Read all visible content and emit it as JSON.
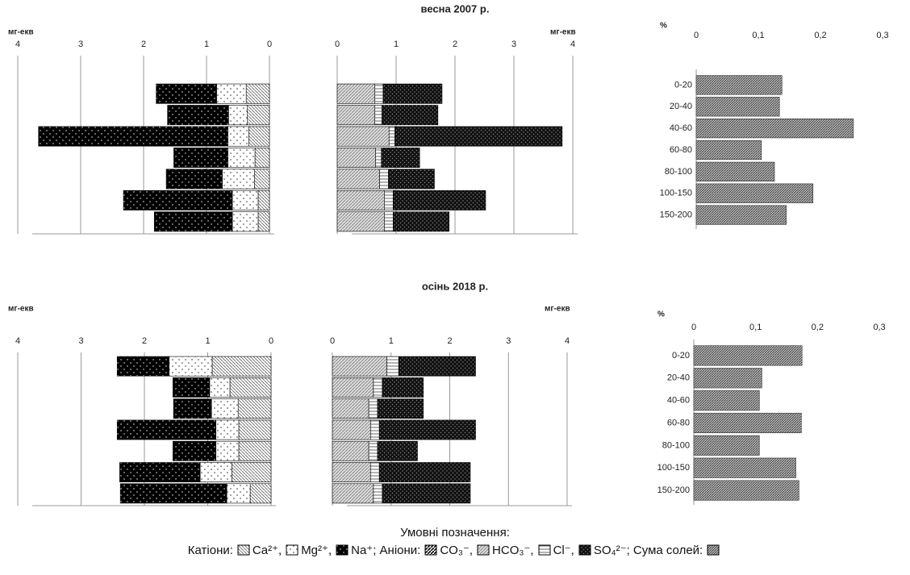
{
  "sections": [
    "весна 2007 р.",
    "осінь 2018 р."
  ],
  "legend": {
    "title": "Умовні позначення:",
    "groups": [
      {
        "label": "Катіони:"
      },
      {
        "label": "Аніони:"
      },
      {
        "label": "Сума солей:"
      }
    ]
  },
  "chart_data": [
    {
      "type": "stacked_bar",
      "unit": "мг-екв",
      "unit_position": "left",
      "xlim": [
        4,
        0
      ],
      "xticks": [
        4,
        3,
        2,
        1,
        0
      ],
      "grid": true,
      "series": [
        {
          "name": "Ca²⁺",
          "pattern": "p-ca",
          "values": [
            0.37,
            0.35,
            0.33,
            0.23,
            0.24,
            0.18,
            0.18
          ]
        },
        {
          "name": "Mg²⁺",
          "pattern": "p-mg",
          "values": [
            0.47,
            0.3,
            0.33,
            0.43,
            0.51,
            0.41,
            0.41
          ]
        },
        {
          "name": "Na⁺",
          "pattern": "p-na",
          "values": [
            0.96,
            0.97,
            3.01,
            0.86,
            0.89,
            1.73,
            1.24
          ]
        }
      ]
    },
    {
      "type": "stacked_bar",
      "unit": "мг-екв",
      "unit_position": "right",
      "xlim": [
        0,
        4
      ],
      "xticks": [
        0,
        1,
        2,
        3,
        4
      ],
      "grid": true,
      "series": [
        {
          "name": "CO₃⁻",
          "pattern": "p-co3",
          "values": [
            0,
            0,
            0,
            0,
            0,
            0,
            0
          ]
        },
        {
          "name": "HCO₃⁻",
          "pattern": "p-hco3",
          "values": [
            0.64,
            0.64,
            0.88,
            0.65,
            0.72,
            0.8,
            0.8
          ]
        },
        {
          "name": "Cl⁻",
          "pattern": "p-cl",
          "values": [
            0.14,
            0.12,
            0.1,
            0.1,
            0.15,
            0.15,
            0.15
          ]
        },
        {
          "name": "SO₄²⁻",
          "pattern": "p-so4",
          "values": [
            1.0,
            0.95,
            2.84,
            0.65,
            0.78,
            1.57,
            0.95
          ]
        }
      ]
    },
    {
      "type": "bar",
      "unit": "%",
      "unit_position": "left",
      "xlim": [
        0,
        0.3
      ],
      "xticks": [
        0,
        {
          "value": 0.1,
          "label": "0,1"
        },
        {
          "value": 0.2,
          "label": "0,2"
        },
        {
          "value": 0.3,
          "label": "0,3"
        }
      ],
      "grid": false,
      "pattern": "p-sum",
      "categories": [
        "0-20",
        "20-40",
        "40-60",
        "60-80",
        "80-100",
        "100-150",
        "150-200"
      ],
      "values": [
        0.138,
        0.134,
        0.253,
        0.105,
        0.126,
        0.188,
        0.145
      ]
    },
    {
      "type": "stacked_bar",
      "unit": "мг-екв",
      "unit_position": "left",
      "xlim": [
        4,
        0
      ],
      "xticks": [
        4,
        3,
        2,
        1,
        0
      ],
      "grid": true,
      "series": [
        {
          "name": "Ca²⁺",
          "pattern": "p-ca",
          "values": [
            0.93,
            0.65,
            0.52,
            0.51,
            0.51,
            0.62,
            0.33
          ]
        },
        {
          "name": "Mg²⁺",
          "pattern": "p-mg",
          "values": [
            0.68,
            0.32,
            0.42,
            0.36,
            0.36,
            0.5,
            0.37
          ]
        },
        {
          "name": "Na⁺",
          "pattern": "p-na",
          "values": [
            0.82,
            0.58,
            0.6,
            1.56,
            0.68,
            1.27,
            1.68
          ]
        }
      ]
    },
    {
      "type": "stacked_bar",
      "unit": "мг-екв",
      "unit_position": "right",
      "xlim": [
        0,
        4
      ],
      "xticks": [
        0,
        1,
        2,
        3,
        4
      ],
      "grid": true,
      "series": [
        {
          "name": "CO₃⁻",
          "pattern": "p-co3",
          "values": [
            0,
            0,
            0,
            0,
            0,
            0,
            0
          ]
        },
        {
          "name": "HCO₃⁻",
          "pattern": "p-hco3",
          "values": [
            0.93,
            0.7,
            0.62,
            0.65,
            0.62,
            0.65,
            0.7
          ]
        },
        {
          "name": "Cl⁻",
          "pattern": "p-cl",
          "values": [
            0.2,
            0.15,
            0.15,
            0.15,
            0.15,
            0.15,
            0.15
          ]
        },
        {
          "name": "SO₄²⁻",
          "pattern": "p-so4",
          "values": [
            1.31,
            0.7,
            0.78,
            1.64,
            0.68,
            1.55,
            1.5
          ]
        }
      ]
    },
    {
      "type": "bar",
      "unit": "%",
      "unit_position": "left",
      "xlim": [
        0,
        0.3
      ],
      "xticks": [
        0,
        {
          "value": 0.1,
          "label": "0,1"
        },
        {
          "value": 0.2,
          "label": "0,2"
        },
        {
          "value": 0.3,
          "label": "0,3"
        }
      ],
      "grid": false,
      "pattern": "p-sum",
      "categories": [
        "0-20",
        "20-40",
        "40-60",
        "60-80",
        "80-100",
        "100-150",
        "150-200"
      ],
      "values": [
        0.175,
        0.11,
        0.106,
        0.174,
        0.106,
        0.165,
        0.17
      ]
    }
  ]
}
